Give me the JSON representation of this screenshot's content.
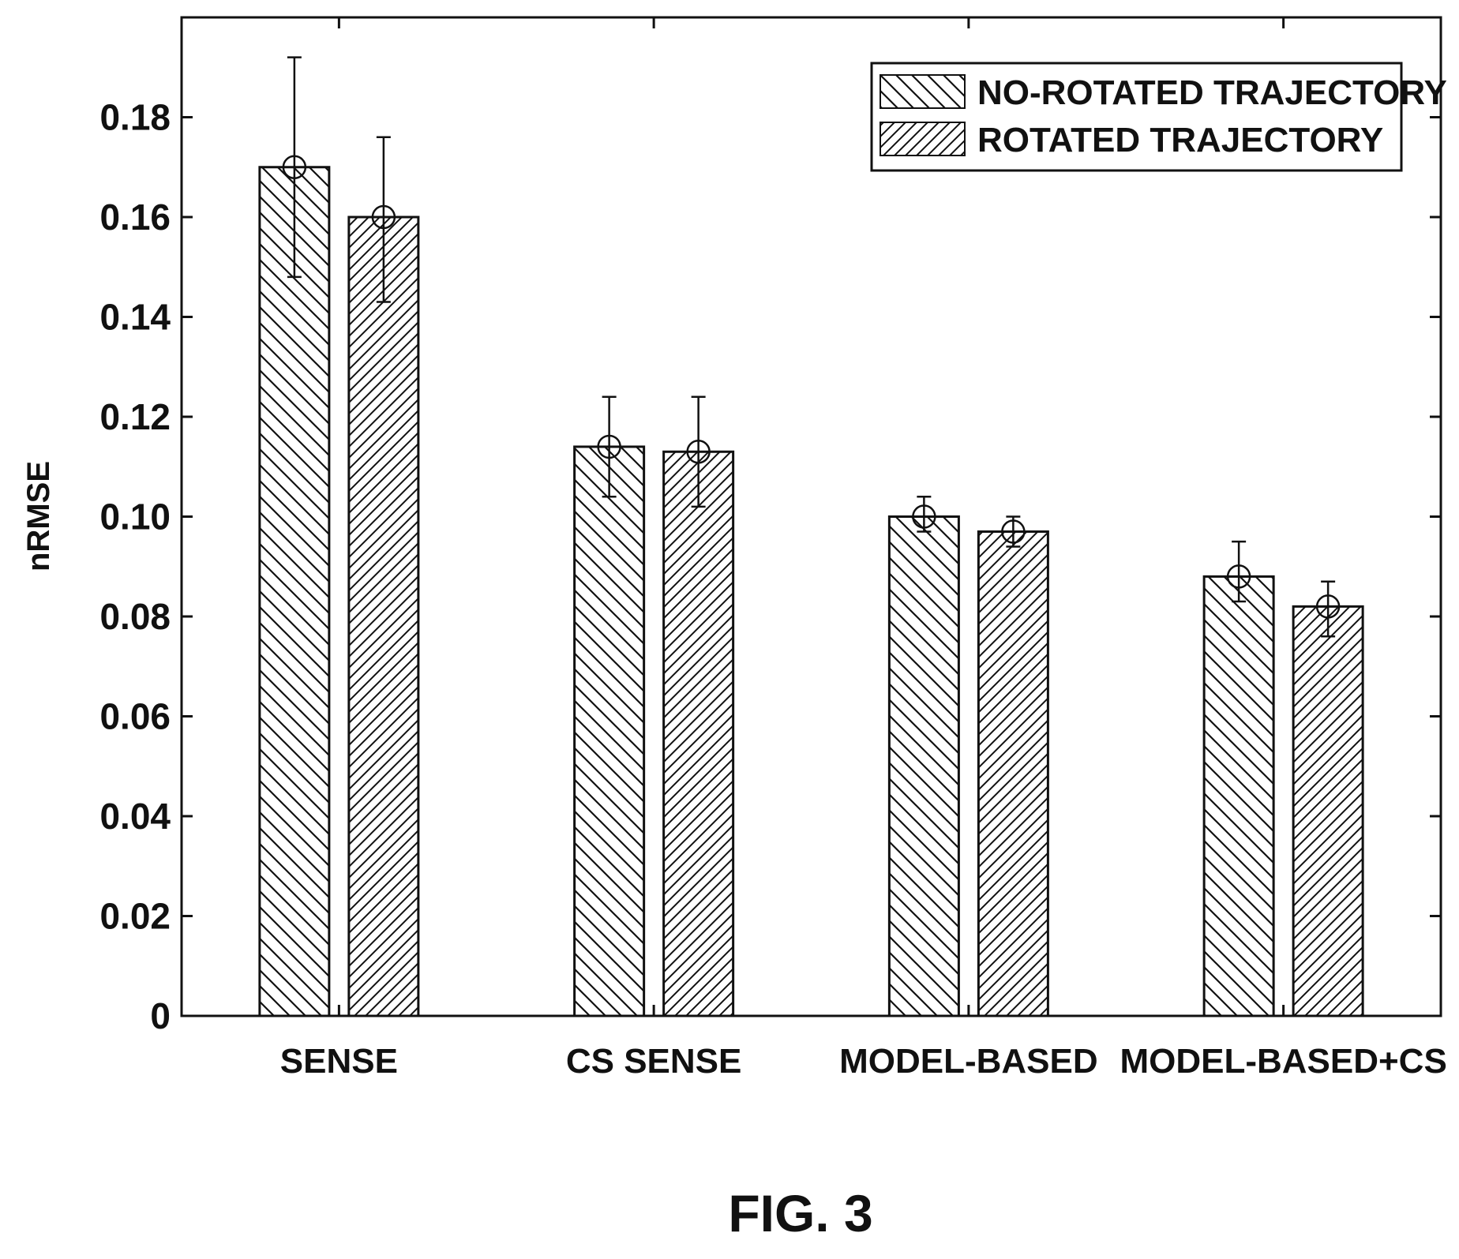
{
  "chart_data": {
    "type": "bar",
    "ylabel": "nRMSE",
    "xlabel": "",
    "ylim": [
      0,
      0.2
    ],
    "yticks": [
      "0",
      "0.02",
      "0.04",
      "0.06",
      "0.08",
      "0.10",
      "0.12",
      "0.14",
      "0.16",
      "0.18"
    ],
    "categories": [
      "SENSE",
      "CS SENSE",
      "MODEL-BASED",
      "MODEL-BASED+CS"
    ],
    "series": [
      {
        "name": "NO-ROTATED TRAJECTORY",
        "hatch": "backslash",
        "values": [
          0.17,
          0.114,
          0.1,
          0.088
        ],
        "error_low": [
          0.148,
          0.104,
          0.097,
          0.083
        ],
        "error_high": [
          0.192,
          0.124,
          0.104,
          0.095
        ]
      },
      {
        "name": "ROTATED TRAJECTORY",
        "hatch": "slash",
        "values": [
          0.16,
          0.113,
          0.097,
          0.082
        ],
        "error_low": [
          0.143,
          0.102,
          0.094,
          0.076
        ],
        "error_high": [
          0.176,
          0.124,
          0.1,
          0.087
        ]
      }
    ],
    "legend_position": "top-right",
    "grid": false,
    "marker": "circle-with-cross",
    "colors": {
      "ink": "#111111",
      "background": "#ffffff"
    }
  },
  "caption": "FIG. 3"
}
